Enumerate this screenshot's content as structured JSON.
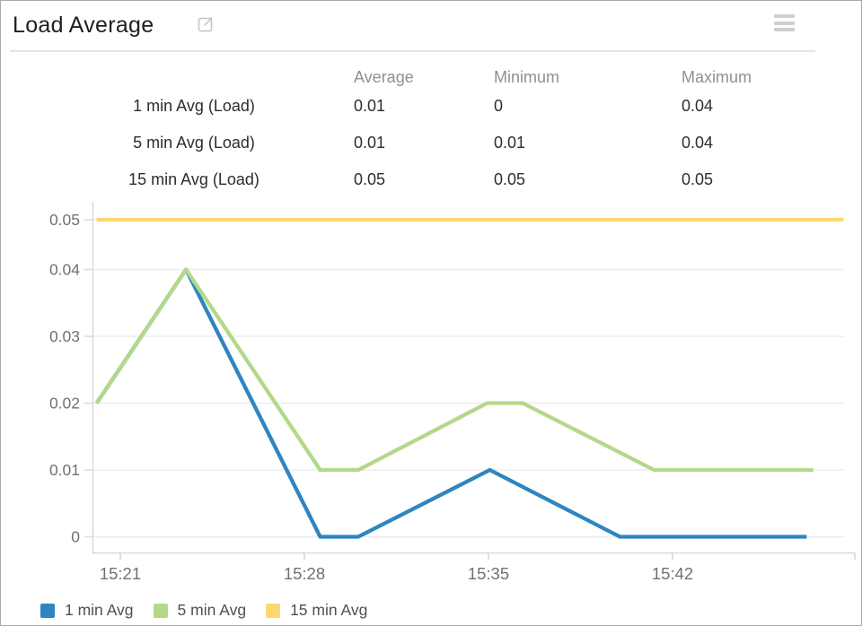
{
  "header": {
    "title": "Load Average",
    "icons": {
      "open": "external-link-icon",
      "menu": "hamburger-menu-icon"
    }
  },
  "stats_table": {
    "columns": [
      "Average",
      "Minimum",
      "Maximum"
    ],
    "rows": [
      {
        "label": "1 min Avg (Load)",
        "average": "0.01",
        "minimum": "0",
        "maximum": "0.04"
      },
      {
        "label": "5 min Avg (Load)",
        "average": "0.01",
        "minimum": "0.01",
        "maximum": "0.04"
      },
      {
        "label": "15 min Avg (Load)",
        "average": "0.05",
        "minimum": "0.05",
        "maximum": "0.05"
      }
    ]
  },
  "chart_data": {
    "type": "line",
    "title": "Load Average",
    "xlabel": "",
    "ylabel": "",
    "x_unit": "time of day (HH:MM), stored as minutes after 15:00",
    "grid": true,
    "legend_position": "bottom",
    "ylim": [
      0,
      0.05
    ],
    "y_ticks": [
      {
        "label": "0",
        "value": 0
      },
      {
        "label": "0.01",
        "value": 0.01
      },
      {
        "label": "0.02",
        "value": 0.02
      },
      {
        "label": "0.03",
        "value": 0.03
      },
      {
        "label": "0.04",
        "value": 0.04
      },
      {
        "label": "0.05",
        "value": 0.05
      }
    ],
    "x_ticks": [
      {
        "label": "15:21",
        "minute": 21
      },
      {
        "label": "15:28",
        "minute": 28
      },
      {
        "label": "15:35",
        "minute": 35
      },
      {
        "label": "15:42",
        "minute": 42
      }
    ],
    "series": [
      {
        "name": "1 min Avg",
        "color": "#2e85c1",
        "points": [
          [
            20.1,
            0.02
          ],
          [
            23.5,
            0.04
          ],
          [
            28.6,
            0
          ],
          [
            30.05,
            0
          ],
          [
            35.05,
            0.01
          ],
          [
            40.0,
            0
          ],
          [
            47.1,
            0
          ]
        ]
      },
      {
        "name": "5 min Avg",
        "color": "#b4d88a",
        "points": [
          [
            20.1,
            0.02
          ],
          [
            23.5,
            0.04
          ],
          [
            28.6,
            0.01
          ],
          [
            30.05,
            0.01
          ],
          [
            34.95,
            0.02
          ],
          [
            36.3,
            0.02
          ],
          [
            41.3,
            0.01
          ],
          [
            47.35,
            0.01
          ]
        ]
      },
      {
        "name": "15 min Avg",
        "color": "#fcd970",
        "points": [
          [
            20.1,
            0.05
          ],
          [
            48.5,
            0.05
          ]
        ]
      }
    ]
  },
  "legend": {
    "items": [
      {
        "label": "1 min Avg",
        "color": "#2e85c1"
      },
      {
        "label": "5 min Avg",
        "color": "#b4d88a"
      },
      {
        "label": "15 min Avg",
        "color": "#fcd970"
      }
    ]
  },
  "colors": {
    "grid": "#ededed",
    "axis": "#dedede",
    "axis_label": "#6e7275",
    "table_header_text": "#8d9194",
    "table_value_text": "#2b2d2f"
  }
}
